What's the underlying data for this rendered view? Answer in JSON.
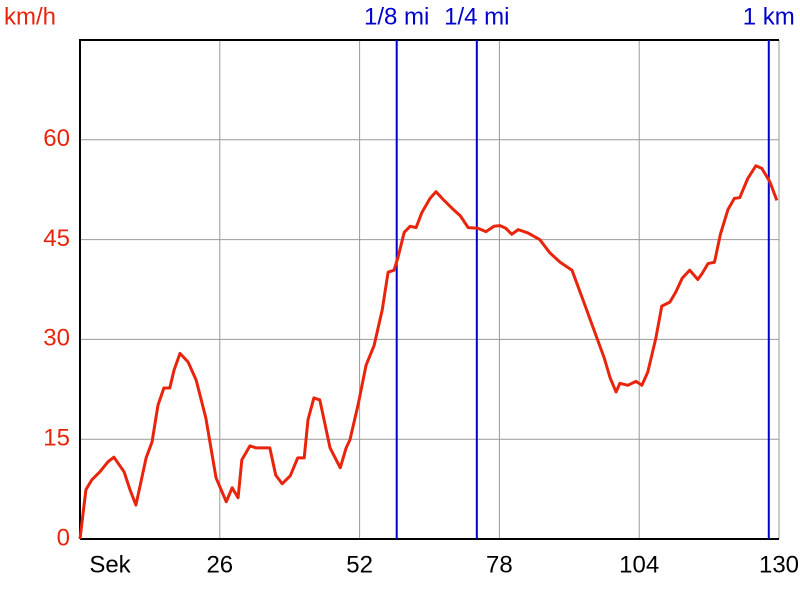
{
  "chart_data": {
    "type": "line",
    "y_label": "km/h",
    "xlim": [
      0,
      130
    ],
    "xticks": [
      {
        "value": 0,
        "label": "Sek"
      },
      26,
      52,
      78,
      104,
      130
    ],
    "ylim": [
      0,
      75
    ],
    "yticks": [
      0,
      15,
      30,
      45,
      60
    ],
    "grid": true,
    "x": [
      0,
      1.1,
      2.2,
      3.7,
      5.2,
      6.3,
      8.2,
      9.3,
      10.4,
      12.3,
      13.4,
      14.5,
      15.6,
      16.7,
      17.5,
      18.6,
      20.1,
      21.6,
      23.4,
      25.3,
      27.2,
      28.3,
      29.4,
      30.1,
      31.6,
      32.7,
      35.3,
      36.4,
      37.6,
      39.1,
      40.5,
      41.7,
      42.4,
      43.5,
      44.6,
      46.5,
      48.4,
      49.5,
      50.2,
      51.7,
      53.2,
      54.7,
      56.2,
      57.3,
      58.4,
      59.1,
      60.3,
      61.4,
      62.5,
      63.6,
      65.1,
      66.2,
      67.7,
      69.2,
      70.7,
      72.2,
      74,
      75.5,
      77,
      78.1,
      79.2,
      80.3,
      81.5,
      83.3,
      85.5,
      87.4,
      89.3,
      91.5,
      93.7,
      95.6,
      97.5,
      98.6,
      99.7,
      100.4,
      101.9,
      103.4,
      104.5,
      105.6,
      107.1,
      108.2,
      109.7,
      110.8,
      112,
      113.4,
      114.9,
      115.7,
      116.8,
      118,
      119.1,
      120.5,
      121.7,
      122.7,
      124.2,
      125.7,
      126.8,
      128.3,
      129.6
    ],
    "series": [
      {
        "color": "#e8250c",
        "values": [
          0,
          7.4,
          8.9,
          10.1,
          11.6,
          12.3,
          10.1,
          7.4,
          5.1,
          12.2,
          14.6,
          20.1,
          22.7,
          22.7,
          25.4,
          27.9,
          26.6,
          23.9,
          18.2,
          9.2,
          5.6,
          7.7,
          6.2,
          11.9,
          14,
          13.7,
          13.7,
          9.6,
          8.3,
          9.5,
          12.2,
          12.2,
          17.9,
          21.2,
          20.9,
          13.7,
          10.7,
          13.7,
          14.9,
          20.1,
          26.1,
          29.1,
          34.4,
          40.1,
          40.4,
          42.2,
          46.1,
          47,
          46.8,
          49.1,
          51.2,
          52.2,
          50.9,
          49.7,
          48.6,
          46.8,
          46.7,
          46.2,
          47,
          47.1,
          46.7,
          45.8,
          46.5,
          46,
          45,
          43,
          41.6,
          40.4,
          35.6,
          31.4,
          27.2,
          24.2,
          22.1,
          23.4,
          23.1,
          23.7,
          23.1,
          25.1,
          30.2,
          35,
          35.6,
          37.1,
          39.2,
          40.4,
          39,
          39.9,
          41.4,
          41.6,
          45.8,
          49.5,
          51.2,
          51.3,
          54.2,
          56.1,
          55.7,
          53.7,
          50.9
        ]
      }
    ],
    "markers": [
      {
        "label": "1/8 mi",
        "x": 58.9,
        "color": "#0000cc"
      },
      {
        "label": "1/4 mi",
        "x": 73.8,
        "color": "#0000cc"
      },
      {
        "label": "1 km",
        "x": 128.1,
        "color": "#0000cc"
      }
    ]
  }
}
